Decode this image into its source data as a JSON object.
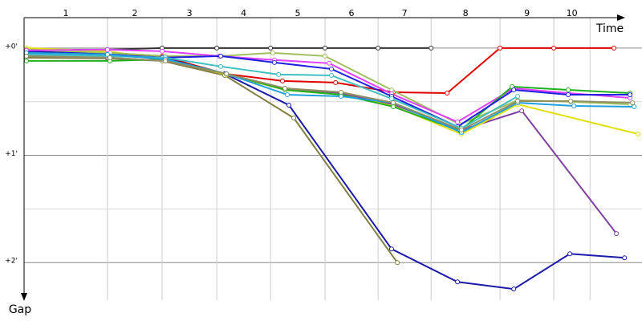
{
  "chart_data": {
    "type": "line",
    "x_label": "Time",
    "y_label": "Gap",
    "xlim": [
      0,
      346
    ],
    "ylim": [
      -17,
      141
    ],
    "yticks": [
      {
        "value": 0,
        "label": "+0'"
      },
      {
        "value": 60,
        "label": "+1'"
      },
      {
        "value": 120,
        "label": "+2'"
      }
    ],
    "minor_yticks": [
      30,
      90
    ],
    "grid": true,
    "laps": {
      "labels": [
        "1",
        "2",
        "3",
        "4",
        "5",
        "6",
        "7",
        "8",
        "9",
        "10"
      ],
      "ends": [
        46.7,
        77.3,
        107.9,
        138.0,
        168.5,
        198.2,
        227.9,
        266.5,
        296.6,
        316.9
      ]
    },
    "series": [
      {
        "color": "#333333",
        "x": [
          1.3,
          46.7,
          77.3,
          107.9,
          138.0,
          168.5,
          198.2,
          227.9
        ],
        "values": [
          0.9,
          0.9,
          0,
          0,
          0,
          0,
          0,
          0
        ]
      },
      {
        "color": "#e00000",
        "x": [
          1.3,
          46.7,
          77.3,
          112.4,
          144.7,
          174.4,
          206.7,
          236.9,
          266.5,
          296.6,
          330.3
        ],
        "values": [
          1.8,
          2.7,
          4.5,
          14.4,
          18.4,
          19.3,
          24.7,
          25.2,
          0,
          0,
          0
        ]
      },
      {
        "color": "#1a1aaa",
        "x": [
          1.3,
          46.7,
          77.3,
          112.4,
          148.3,
          205.8,
          242.7,
          274.2,
          305.6,
          336.2
        ],
        "values": [
          1.8,
          3.1,
          5.4,
          14.4,
          31.9,
          112.4,
          130.8,
          134.8,
          115.1,
          117.3
        ]
      },
      {
        "color": "#808040",
        "x": [
          1.3,
          46.7,
          77.3,
          112.4,
          151.0,
          209.0
        ],
        "values": [
          5.4,
          5.8,
          7.2,
          15.3,
          39.1,
          120.0
        ]
      },
      {
        "color": "#8040a0",
        "x": [
          1.3,
          46.7,
          79.1,
          113.3,
          146.1,
          177.5,
          206.7,
          244.9,
          278.7,
          331.7
        ],
        "values": [
          4.5,
          5.4,
          7.2,
          14.4,
          22.9,
          25.6,
          31.5,
          45.8,
          35.1,
          103.8
        ]
      },
      {
        "color": "#e0e000",
        "x": [
          1.3,
          46.7,
          79.1,
          113.3,
          146.1,
          177.5,
          206.7,
          244.9,
          276.4,
          343.8
        ],
        "values": [
          0,
          1.8,
          6.3,
          14.8,
          23.4,
          26.1,
          32.4,
          48.1,
          31.5,
          48.1
        ]
      },
      {
        "color": "#a0c060",
        "x": [
          1.3,
          48.1,
          79.1,
          110.1,
          139.3,
          168.5,
          205.8,
          244.0,
          276.4,
          306.1,
          339.3
        ],
        "values": [
          0.9,
          2.7,
          4.5,
          4.5,
          2.7,
          4.5,
          23.4,
          42.7,
          29.2,
          30.1,
          31.5
        ]
      },
      {
        "color": "#e040ff",
        "x": [
          1.3,
          46.7,
          77.3,
          109.2,
          140.2,
          170.8,
          205.8,
          242.7,
          274.2,
          304.7,
          339.3
        ],
        "values": [
          1.3,
          0.9,
          1.8,
          4.5,
          6.7,
          8.5,
          25.6,
          41.3,
          22.5,
          25.2,
          27.9
        ]
      },
      {
        "color": "#20b020",
        "x": [
          1.3,
          48.1,
          79.1,
          113.3,
          146.1,
          177.5,
          206.7,
          244.0,
          273.3,
          304.7,
          339.3
        ],
        "values": [
          7.2,
          7.2,
          6.3,
          14.4,
          23.4,
          26.1,
          32.8,
          46.3,
          21.6,
          23.4,
          25.2
        ]
      },
      {
        "color": "#2020e0",
        "x": [
          1.3,
          46.7,
          77.3,
          110.1,
          140.2,
          172.1,
          205.8,
          242.7,
          274.2,
          304.7,
          339.3
        ],
        "values": [
          2.7,
          3.6,
          5.4,
          4.5,
          8.1,
          11.7,
          27.0,
          44.0,
          23.4,
          26.1,
          26.1
        ]
      },
      {
        "color": "#40c0c0",
        "x": [
          1.3,
          46.7,
          79.1,
          110.1,
          142.5,
          172.1,
          205.8,
          244.9,
          276.4
        ],
        "values": [
          3.6,
          4.5,
          5.4,
          10.3,
          14.8,
          15.3,
          28.3,
          44.9,
          27.0
        ]
      },
      {
        "color": "#20a0e0",
        "x": [
          1.3,
          46.7,
          79.1,
          113.3,
          147.4,
          177.5,
          206.7,
          244.9,
          276.4,
          307.9,
          341.6
        ],
        "values": [
          2.7,
          3.6,
          6.3,
          14.4,
          26.1,
          27.0,
          30.6,
          47.2,
          30.6,
          32.4,
          32.8
        ]
      },
      {
        "color": "#909060",
        "x": [
          1.3,
          48.1,
          79.1,
          113.3,
          146.1,
          177.5,
          206.7,
          244.9,
          276.4,
          306.1,
          340.7
        ],
        "values": [
          4.5,
          5.4,
          7.2,
          14.4,
          22.5,
          24.7,
          30.6,
          45.8,
          29.7,
          29.7,
          30.6
        ]
      }
    ]
  }
}
